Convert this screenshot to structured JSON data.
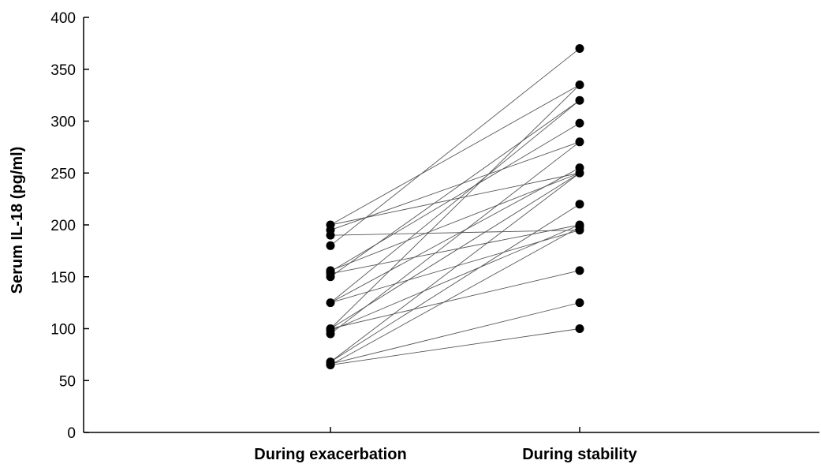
{
  "chart_data": {
    "type": "line",
    "categories": [
      "During exacerbation",
      "During stability"
    ],
    "ylabel": "Serum IL-18 (pg/ml)",
    "ylim": [
      0,
      400
    ],
    "yticks": [
      0,
      50,
      100,
      150,
      200,
      250,
      300,
      350,
      400
    ],
    "grid": false,
    "legend": "none",
    "colors": {
      "line": "#555555",
      "point": "#000000",
      "axis": "#000000"
    },
    "pairs": [
      {
        "exacerbation": 200,
        "stability": 335
      },
      {
        "exacerbation": 200,
        "stability": 250
      },
      {
        "exacerbation": 195,
        "stability": 280
      },
      {
        "exacerbation": 190,
        "stability": 195
      },
      {
        "exacerbation": 180,
        "stability": 370
      },
      {
        "exacerbation": 156,
        "stability": 250
      },
      {
        "exacerbation": 155,
        "stability": 298
      },
      {
        "exacerbation": 153,
        "stability": 200
      },
      {
        "exacerbation": 150,
        "stability": 320
      },
      {
        "exacerbation": 125,
        "stability": 255
      },
      {
        "exacerbation": 125,
        "stability": 195
      },
      {
        "exacerbation": 125,
        "stability": 320
      },
      {
        "exacerbation": 100,
        "stability": 250
      },
      {
        "exacerbation": 100,
        "stability": 335
      },
      {
        "exacerbation": 100,
        "stability": 156
      },
      {
        "exacerbation": 98,
        "stability": 200
      },
      {
        "exacerbation": 95,
        "stability": 280
      },
      {
        "exacerbation": 68,
        "stability": 250
      },
      {
        "exacerbation": 68,
        "stability": 220
      },
      {
        "exacerbation": 66,
        "stability": 125
      },
      {
        "exacerbation": 65,
        "stability": 100
      },
      {
        "exacerbation": 65,
        "stability": 198
      }
    ]
  }
}
